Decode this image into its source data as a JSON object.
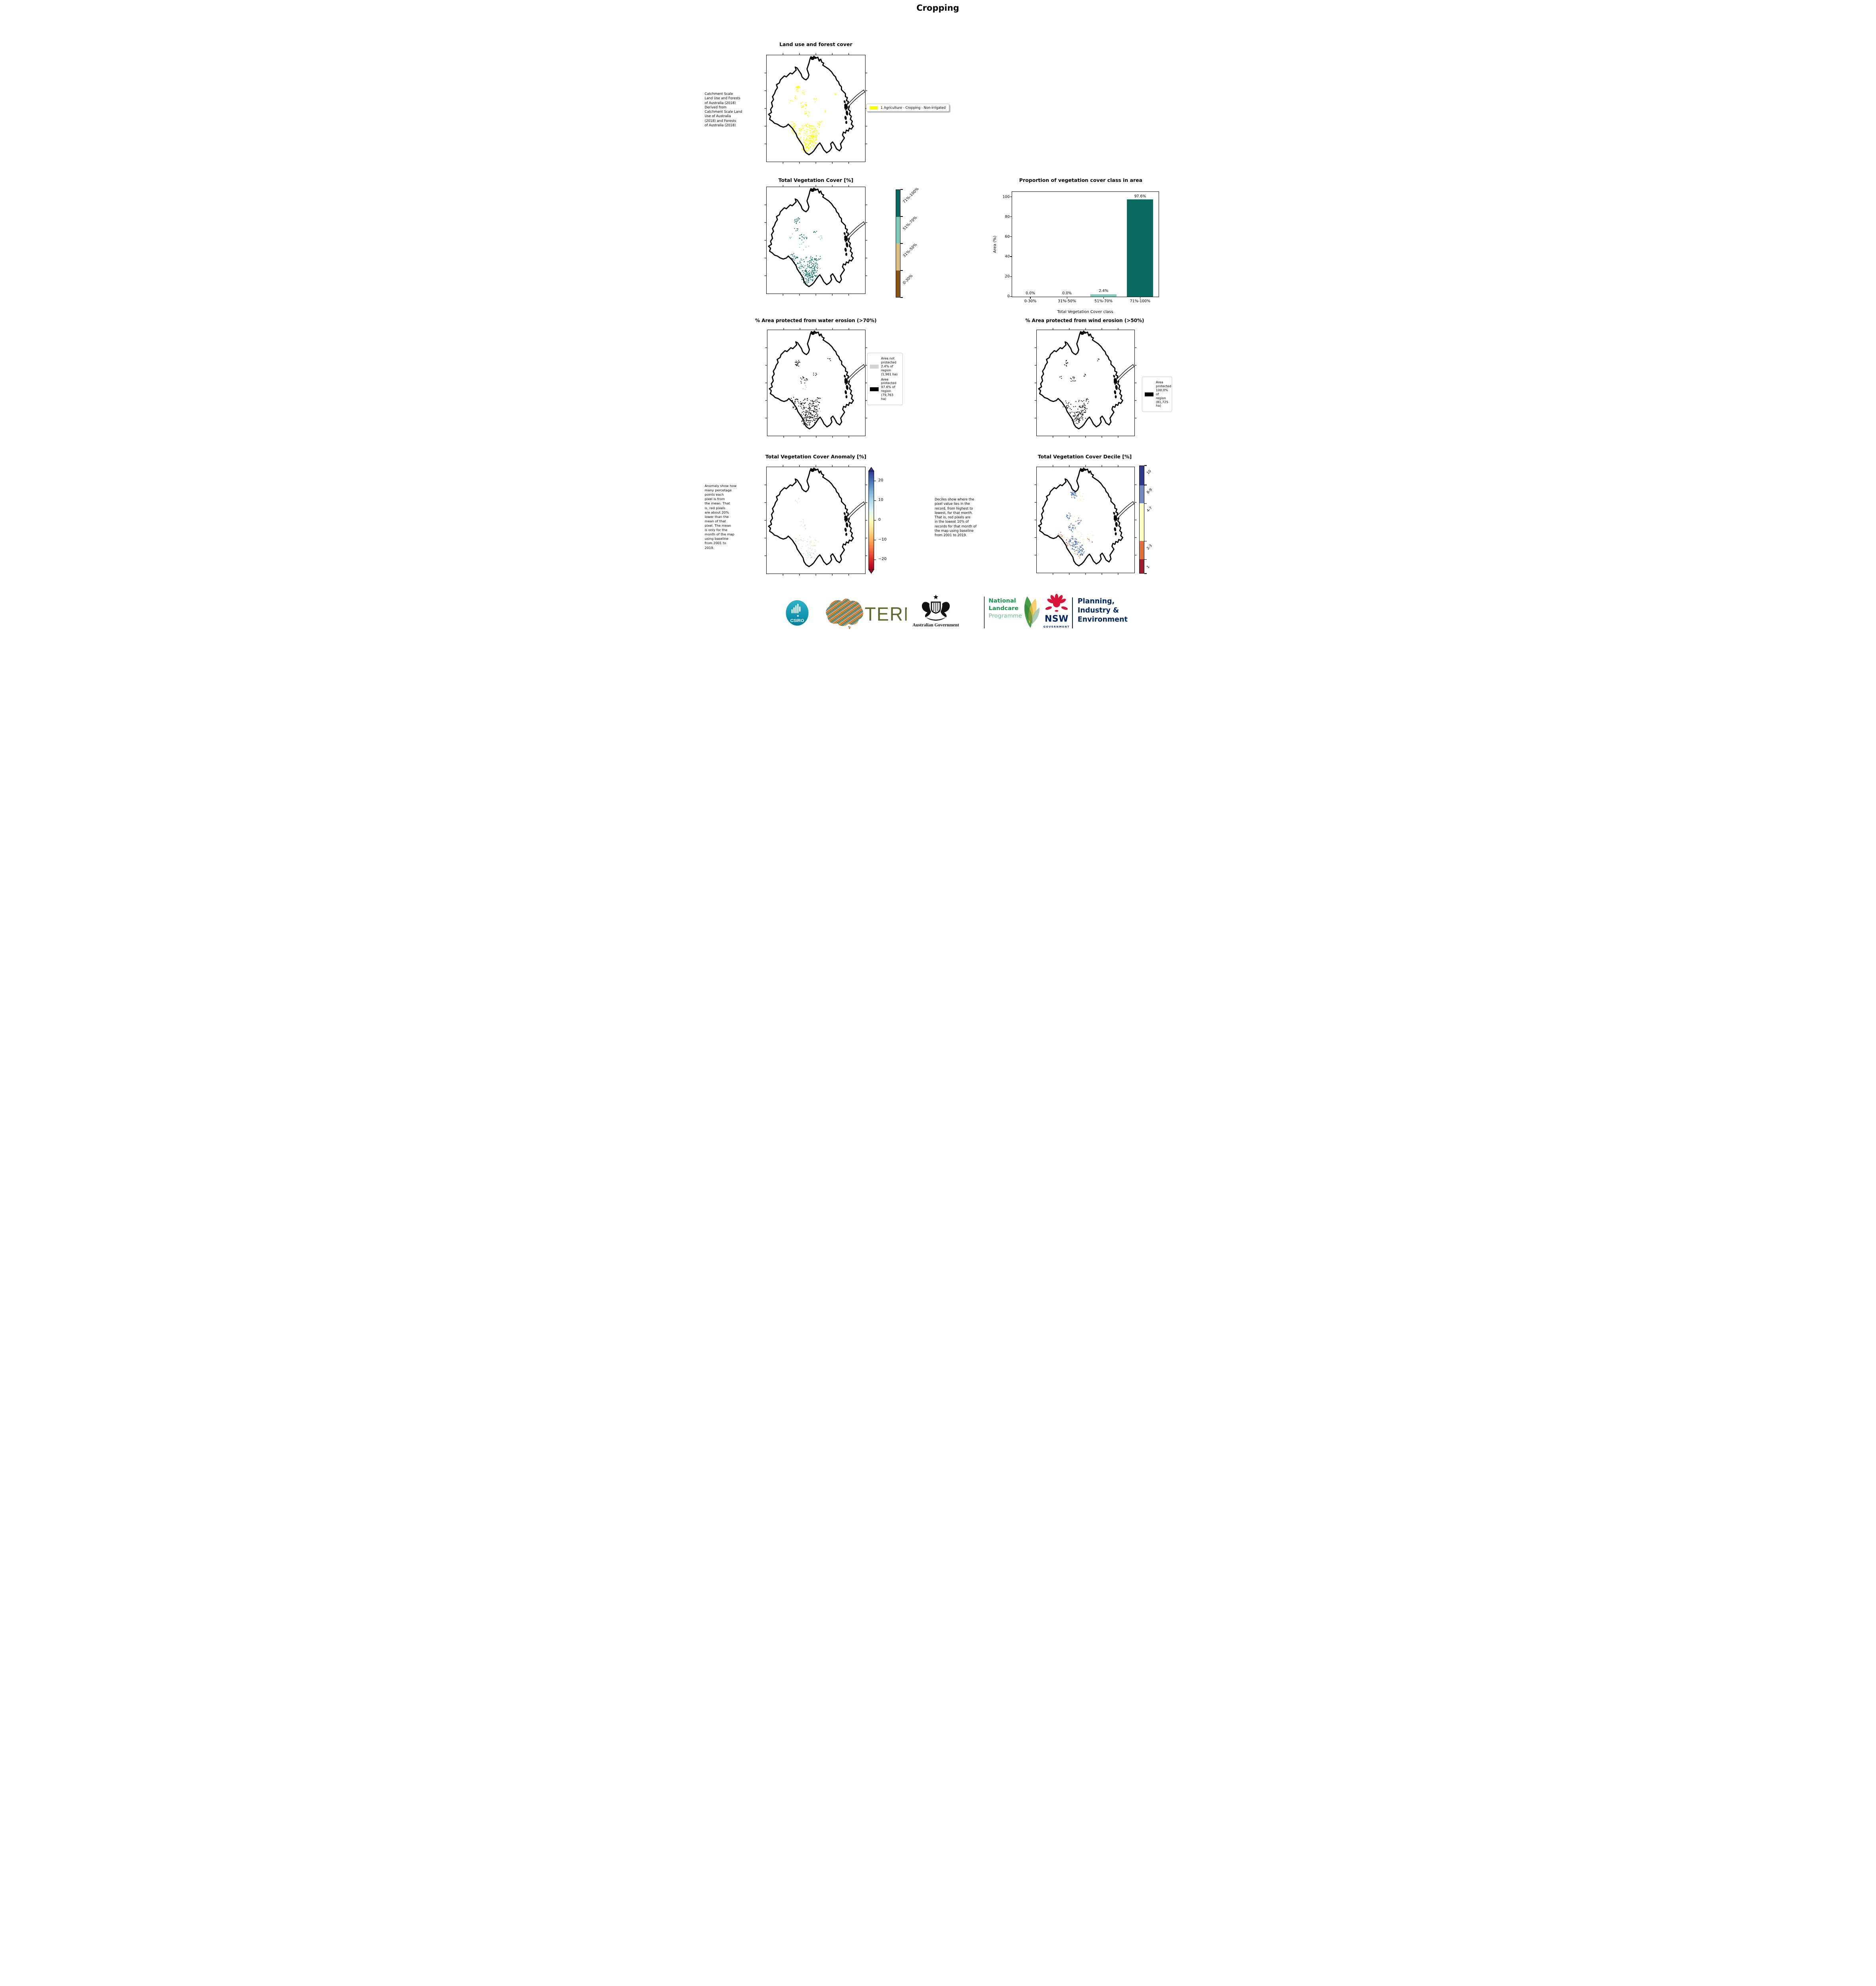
{
  "page": {
    "title": "Cropping"
  },
  "row1": {
    "map_title": "Land use and forest cover",
    "side_note": " Catchment Scale\nLand Use and Forests\nof Australia (2018)\nDerived from\nCatchment Scale Land\nUse of Australia\n(2018) and Forests\nof Australia (2018)",
    "legend_label": "1 Agriculture - Cropping - Non-irrigated",
    "legend_swatch_color": "#fcfc00"
  },
  "row2": {
    "map_title": "Total Vegetation Cover [%]",
    "colorbar_segments": [
      {
        "color": "#0b6a60",
        "label": "71%-100%"
      },
      {
        "color": "#7ecbba",
        "label": "51%-70%"
      },
      {
        "color": "#ddc07e",
        "label": "31%-50%"
      },
      {
        "color": "#8a5513",
        "label": "0-30%"
      }
    ]
  },
  "chart_data": {
    "type": "bar",
    "title": "Proportion of vegetation cover class in area",
    "categories": [
      "0-30%",
      "31%-50%",
      "51%-70%",
      "71%-100%"
    ],
    "values": [
      0.0,
      0.0,
      2.4,
      97.6
    ],
    "bar_labels": [
      "0.0%",
      "0.0%",
      "2.4%",
      "97.6%"
    ],
    "bar_colors": [
      "#0b6a60",
      "#0b6a60",
      "#7ecbba",
      "#0b6a60"
    ],
    "xlabel": "Total Vegetation Cover class",
    "ylabel": "Area (%)",
    "ylim": [
      0,
      105
    ],
    "yticks": [
      0,
      20,
      40,
      60,
      80,
      100
    ],
    "grid": false,
    "legend_position": "none"
  },
  "row3": {
    "left": {
      "title": "% Area protected from water erosion (>70%)",
      "legend": [
        {
          "color": "#d4d4d4",
          "label": "Area not\nprotected\n2.4% of\nregion\n(1,961 ha)"
        },
        {
          "color": "#000000",
          "label": "Area\nprotected\n97.6% of\nregion\n(79,763\nha)"
        }
      ]
    },
    "right": {
      "title": "% Area protected from wind erosion (>50%)",
      "legend": [
        {
          "color": "#000000",
          "label": "Area\nprotected\n100.0% of\nregion\n(81,725\nha)"
        }
      ]
    }
  },
  "row4": {
    "left": {
      "title": "Total Vegetation Cover Anomaly [%]",
      "note": "Anomaly show how\nmany percetage\npoints each\npixel is from\nthe mean. That\nis, red pixels\nare about 20%\nlower than the\nmean of that\npixel. The mean\nis only for the\nmonth of the map\nusing baseline\nfrom 2001 to\n2019.",
      "colorbar_ticks": [
        "20",
        "10",
        "0",
        "−10",
        "−20"
      ],
      "colorbar_gradient": [
        "#313695",
        "#4575b4",
        "#74add1",
        "#abd9e9",
        "#e0f3f8",
        "#ffffbf",
        "#fee090",
        "#fdae61",
        "#f46d43",
        "#d73027",
        "#a50026"
      ]
    },
    "right": {
      "title": "Total Vegetation Cover Decile [%]",
      "note": "Deciles show where the\npixel value lies in the\nrecord, from highest to\nlowest, for that month.\nThat is, red pixels are\nin the lowest 10% of\nrecords for that month of\nthe map using baseline\nfrom 2001 to 2019.",
      "colorbar_segments": [
        {
          "color": "#2d3a8f",
          "height": 18,
          "label": "10"
        },
        {
          "color": "#7189bf",
          "height": 17,
          "label": "8-9"
        },
        {
          "color": "#fdfcc0",
          "height": 35,
          "label": "4-7"
        },
        {
          "color": "#e2703a",
          "height": 17,
          "label": "2-3"
        },
        {
          "color": "#a31c2d",
          "height": 13,
          "label": "1"
        }
      ]
    }
  },
  "maps": {
    "land_use": {
      "clusters": [
        {
          "color": "#fcfc00",
          "pts": [
            [
              42,
              80,
              10,
              90
            ],
            [
              45,
              88,
              7,
              70
            ],
            [
              40,
              93,
              5,
              40
            ],
            [
              30,
              76,
              5,
              25
            ],
            [
              48,
              77,
              6,
              30
            ],
            [
              37,
              51,
              4,
              18
            ],
            [
              41,
              59,
              3,
              12
            ],
            [
              31,
              34,
              3,
              22
            ],
            [
              38,
              38,
              2,
              6
            ],
            [
              30,
              43,
              2,
              6
            ],
            [
              49,
              45,
              2,
              6
            ],
            [
              25,
              47,
              2,
              5
            ],
            [
              55,
              67,
              2,
              5
            ],
            [
              60,
              57,
              1.5,
              4
            ],
            [
              70,
              40,
              1.5,
              4
            ],
            [
              27,
              70,
              3,
              10
            ],
            [
              52,
              72,
              3,
              10
            ]
          ]
        }
      ]
    },
    "veg_cover": {
      "clusters": [
        {
          "color": "#0b6a60",
          "pts": [
            [
              42,
              80,
              10,
              80
            ],
            [
              45,
              88,
              7,
              60
            ],
            [
              40,
              93,
              5,
              35
            ],
            [
              30,
              76,
              5,
              20
            ],
            [
              48,
              77,
              6,
              25
            ],
            [
              37,
              51,
              4,
              15
            ],
            [
              31,
              34,
              3,
              18
            ],
            [
              27,
              70,
              3,
              8
            ],
            [
              52,
              72,
              3,
              8
            ],
            [
              49,
              45,
              2,
              5
            ],
            [
              30,
              43,
              2,
              5
            ]
          ]
        },
        {
          "color": "#7ecbba",
          "pts": [
            [
              43,
              82,
              12,
              30
            ],
            [
              38,
              60,
              5,
              8
            ],
            [
              55,
              50,
              3,
              5
            ],
            [
              25,
              50,
              3,
              5
            ]
          ]
        }
      ]
    },
    "water": {
      "clusters": [
        {
          "color": "#000000",
          "pts": [
            [
              42,
              80,
              10,
              80
            ],
            [
              45,
              88,
              7,
              60
            ],
            [
              40,
              93,
              5,
              35
            ],
            [
              30,
              76,
              5,
              20
            ],
            [
              48,
              77,
              6,
              25
            ],
            [
              37,
              51,
              4,
              15
            ],
            [
              31,
              34,
              3,
              18
            ],
            [
              27,
              70,
              3,
              8
            ],
            [
              52,
              72,
              3,
              8
            ],
            [
              49,
              45,
              2,
              5
            ],
            [
              63,
              30,
              2,
              4
            ]
          ]
        },
        {
          "color": "#c9c9c9",
          "pts": [
            [
              43,
              83,
              12,
              25
            ],
            [
              37,
              58,
              4,
              6
            ]
          ]
        }
      ]
    },
    "wind": {
      "clusters": [
        {
          "color": "#000000",
          "pts": [
            [
              42,
              81,
              9,
              50
            ],
            [
              45,
              88,
              6,
              35
            ],
            [
              40,
              93,
              4,
              20
            ],
            [
              30,
              76,
              4,
              12
            ],
            [
              48,
              77,
              5,
              15
            ],
            [
              37,
              51,
              3,
              10
            ],
            [
              31,
              34,
              3,
              12
            ],
            [
              52,
              72,
              2,
              6
            ],
            [
              49,
              45,
              2,
              4
            ],
            [
              63,
              30,
              1.5,
              3
            ],
            [
              25,
              48,
              1.5,
              3
            ]
          ]
        }
      ]
    },
    "anomaly": {
      "clusters": [
        {
          "color": "#d8ecdc",
          "pts": [
            [
              42,
              81,
              10,
              40
            ],
            [
              45,
              88,
              6,
              25
            ],
            [
              37,
              57,
              4,
              10
            ],
            [
              31,
              34,
              3,
              8
            ],
            [
              30,
              76,
              4,
              8
            ]
          ]
        },
        {
          "color": "#cde3f0",
          "pts": [
            [
              43,
              84,
              8,
              12
            ],
            [
              40,
              60,
              3,
              4
            ]
          ]
        },
        {
          "color": "#f6dfae",
          "pts": [
            [
              47,
              78,
              6,
              8
            ],
            [
              33,
              72,
              3,
              4
            ]
          ]
        },
        {
          "color": "#f0a06a",
          "pts": [
            [
              44,
              90,
              3,
              3
            ],
            [
              29,
              74,
              2,
              2
            ]
          ]
        }
      ]
    },
    "decile": {
      "clusters": [
        {
          "color": "#4a6fb5",
          "pts": [
            [
              38,
              28,
              4,
              35
            ],
            [
              33,
              50,
              3,
              15
            ],
            [
              43,
              55,
              3,
              12
            ],
            [
              36,
              62,
              4,
              25
            ],
            [
              37,
              76,
              5,
              45
            ],
            [
              42,
              83,
              6,
              55
            ],
            [
              46,
              88,
              3,
              15
            ]
          ]
        },
        {
          "color": "#f5f2b8",
          "pts": [
            [
              40,
              78,
              12,
              40
            ],
            [
              36,
              55,
              6,
              12
            ],
            [
              44,
              30,
              5,
              12
            ],
            [
              30,
              72,
              4,
              8
            ],
            [
              55,
              70,
              4,
              8
            ]
          ]
        },
        {
          "color": "#df6e3c",
          "pts": [
            [
              25,
              70,
              2,
              5
            ],
            [
              31,
              79,
              2,
              5
            ],
            [
              53,
              74,
              2,
              4
            ],
            [
              44,
              92,
              2,
              3
            ],
            [
              23,
              68,
              2,
              3
            ]
          ]
        },
        {
          "color": "#a50f26",
          "pts": [
            [
              30,
              76,
              1.5,
              2
            ],
            [
              47,
              90,
              1,
              1
            ],
            [
              56,
              77,
              1,
              1
            ]
          ]
        }
      ]
    }
  },
  "footer": {
    "csiro_label": "CSIRO",
    "tern_label": "TERN",
    "ausgov_label": "Australian Government",
    "nlp": {
      "line1": "National",
      "line2": "Landcare",
      "line3": "Programme"
    },
    "nsw": {
      "name": "NSW",
      "sub": "GOVERNMENT"
    },
    "pie": {
      "line1": "Planning,",
      "line2": "Industry &",
      "line3": "Environment"
    }
  },
  "colors": {
    "teal_dark": "#0b6a60",
    "teal_light": "#7ecbba",
    "tan": "#ddc07e",
    "brown": "#8a5513",
    "cropping_yellow": "#fcfc00",
    "nsw_red": "#d7153a",
    "nsw_navy": "#002664",
    "landcare_green": "#17954a",
    "landcare_light": "#6fbf90",
    "tern_olive": "#5c6b2d",
    "csiro_teal": "#0e9fbe"
  }
}
